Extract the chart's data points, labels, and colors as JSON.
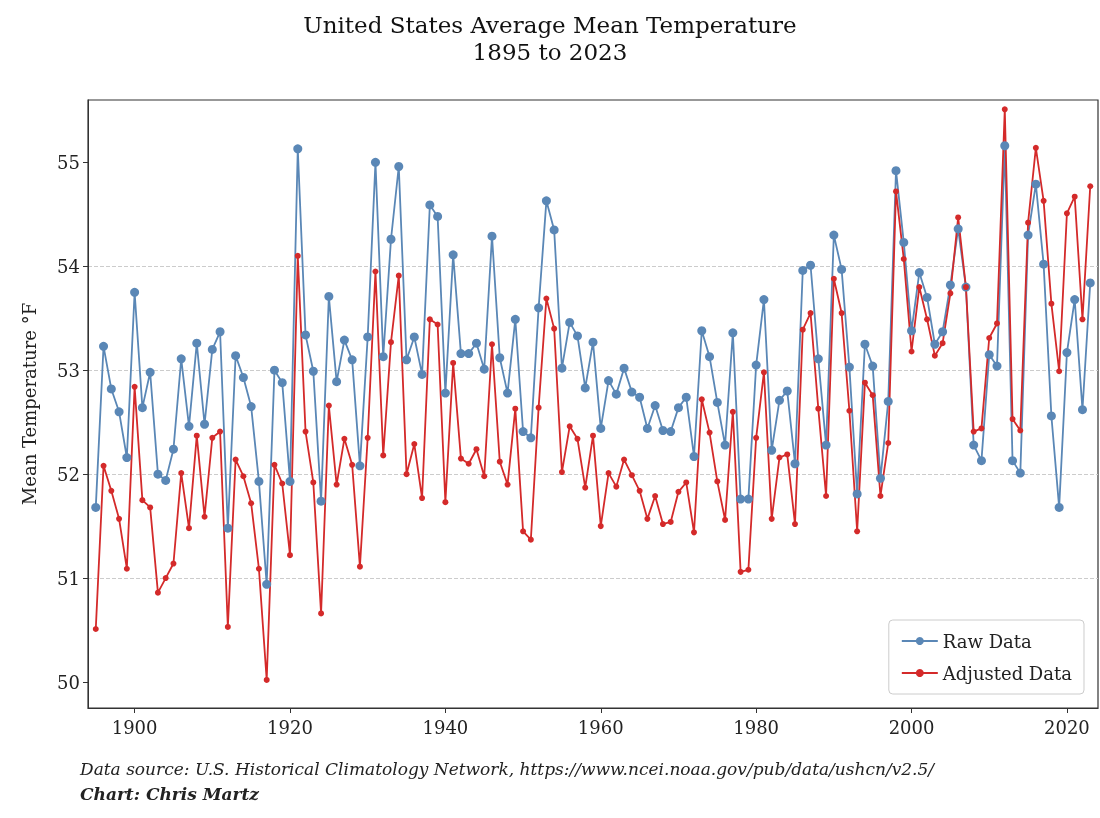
{
  "chart_data": {
    "type": "line",
    "title": "United States Average Mean Temperature",
    "subtitle": "1895 to 2023",
    "ylabel": "Mean Temperature °F",
    "annotations": [
      "Data source: U.S. Historical Climatology Network, https://www.ncei.noaa.gov/pub/data/ushcn/v2.5/",
      "Chart: Chris Martz"
    ],
    "x": [
      1895,
      1896,
      1897,
      1898,
      1899,
      1900,
      1901,
      1902,
      1903,
      1904,
      1905,
      1906,
      1907,
      1908,
      1909,
      1910,
      1911,
      1912,
      1913,
      1914,
      1915,
      1916,
      1917,
      1918,
      1919,
      1920,
      1921,
      1922,
      1923,
      1924,
      1925,
      1926,
      1927,
      1928,
      1929,
      1930,
      1931,
      1932,
      1933,
      1934,
      1935,
      1936,
      1937,
      1938,
      1939,
      1940,
      1941,
      1942,
      1943,
      1944,
      1945,
      1946,
      1947,
      1948,
      1949,
      1950,
      1951,
      1952,
      1953,
      1954,
      1955,
      1956,
      1957,
      1958,
      1959,
      1960,
      1961,
      1962,
      1963,
      1964,
      1965,
      1966,
      1967,
      1968,
      1969,
      1970,
      1971,
      1972,
      1973,
      1974,
      1975,
      1976,
      1977,
      1978,
      1979,
      1980,
      1981,
      1982,
      1983,
      1984,
      1985,
      1986,
      1987,
      1988,
      1989,
      1990,
      1991,
      1992,
      1993,
      1994,
      1995,
      1996,
      1997,
      1998,
      1999,
      2000,
      2001,
      2002,
      2003,
      2004,
      2005,
      2006,
      2007,
      2008,
      2009,
      2010,
      2011,
      2012,
      2013,
      2014,
      2015,
      2016,
      2017,
      2018,
      2019,
      2020,
      2021,
      2022,
      2023
    ],
    "series": [
      {
        "name": "Raw Data",
        "color": "#5a87b6",
        "values": [
          51.68,
          53.23,
          52.82,
          52.6,
          52.16,
          53.75,
          52.64,
          52.98,
          52.0,
          51.94,
          52.24,
          53.11,
          52.46,
          53.26,
          52.48,
          53.2,
          53.37,
          51.48,
          53.14,
          52.93,
          52.65,
          51.93,
          50.94,
          53.0,
          52.88,
          51.93,
          55.13,
          53.34,
          52.99,
          51.74,
          53.71,
          52.89,
          53.29,
          53.1,
          52.08,
          53.32,
          55.0,
          53.13,
          54.26,
          54.96,
          53.1,
          53.32,
          52.96,
          54.59,
          54.48,
          52.78,
          54.11,
          53.16,
          53.16,
          53.26,
          53.01,
          54.29,
          53.12,
          52.78,
          53.49,
          52.41,
          52.35,
          53.6,
          54.63,
          54.35,
          53.02,
          53.46,
          53.33,
          52.83,
          53.27,
          52.44,
          52.9,
          52.77,
          53.02,
          52.79,
          52.74,
          52.44,
          52.66,
          52.42,
          52.41,
          52.64,
          52.74,
          52.17,
          53.38,
          53.13,
          52.69,
          52.28,
          53.36,
          51.76,
          51.76,
          53.05,
          53.68,
          52.23,
          52.71,
          52.8,
          52.1,
          53.96,
          54.01,
          53.11,
          52.28,
          54.3,
          53.97,
          53.03,
          51.81,
          53.25,
          53.04,
          51.96,
          52.7,
          54.92,
          54.23,
          53.38,
          53.94,
          53.7,
          53.25,
          53.37,
          53.82,
          54.36,
          53.8,
          52.28,
          52.13,
          53.15,
          53.04,
          55.16,
          52.13,
          52.01,
          54.3,
          54.79,
          54.02,
          52.56,
          51.68,
          53.17,
          53.68,
          52.62,
          53.84
        ]
      },
      {
        "name": "Adjusted Data",
        "color": "#d42a2a",
        "values": [
          50.51,
          52.08,
          51.84,
          51.57,
          51.09,
          52.84,
          51.75,
          51.68,
          50.86,
          51.0,
          51.14,
          52.01,
          51.48,
          52.37,
          51.59,
          52.35,
          52.41,
          50.53,
          52.14,
          51.98,
          51.72,
          51.09,
          50.02,
          52.09,
          51.91,
          51.22,
          54.1,
          52.41,
          51.92,
          50.66,
          52.66,
          51.9,
          52.34,
          52.09,
          51.11,
          52.35,
          53.95,
          52.18,
          53.27,
          53.91,
          52.0,
          52.29,
          51.77,
          53.49,
          53.44,
          51.73,
          53.07,
          52.15,
          52.1,
          52.24,
          51.98,
          53.25,
          52.12,
          51.9,
          52.63,
          51.45,
          51.37,
          52.64,
          53.69,
          53.4,
          52.02,
          52.46,
          52.34,
          51.87,
          52.37,
          51.5,
          52.01,
          51.88,
          52.14,
          51.99,
          51.84,
          51.57,
          51.79,
          51.52,
          51.54,
          51.83,
          51.92,
          51.44,
          52.72,
          52.4,
          51.93,
          51.56,
          52.6,
          51.06,
          51.08,
          52.35,
          52.98,
          51.57,
          52.16,
          52.19,
          51.52,
          53.39,
          53.55,
          52.63,
          51.79,
          53.88,
          53.55,
          52.61,
          51.45,
          52.88,
          52.76,
          51.79,
          52.3,
          54.72,
          54.07,
          53.18,
          53.8,
          53.49,
          53.14,
          53.26,
          53.74,
          54.47,
          53.8,
          52.41,
          52.44,
          53.31,
          53.45,
          55.51,
          52.53,
          52.42,
          54.42,
          55.14,
          54.63,
          53.64,
          52.99,
          54.51,
          54.67,
          53.49,
          54.77
        ]
      }
    ],
    "xlim": [
      1894,
      2024
    ],
    "xticks": [
      1900,
      1920,
      1940,
      1960,
      1980,
      2000,
      2020
    ],
    "ylim": [
      49.75,
      55.6
    ],
    "yticks": [
      50,
      51,
      52,
      53,
      54,
      55
    ],
    "grid": "y",
    "legend": "bottom right",
    "marker": "circle",
    "line_style": "solid"
  }
}
